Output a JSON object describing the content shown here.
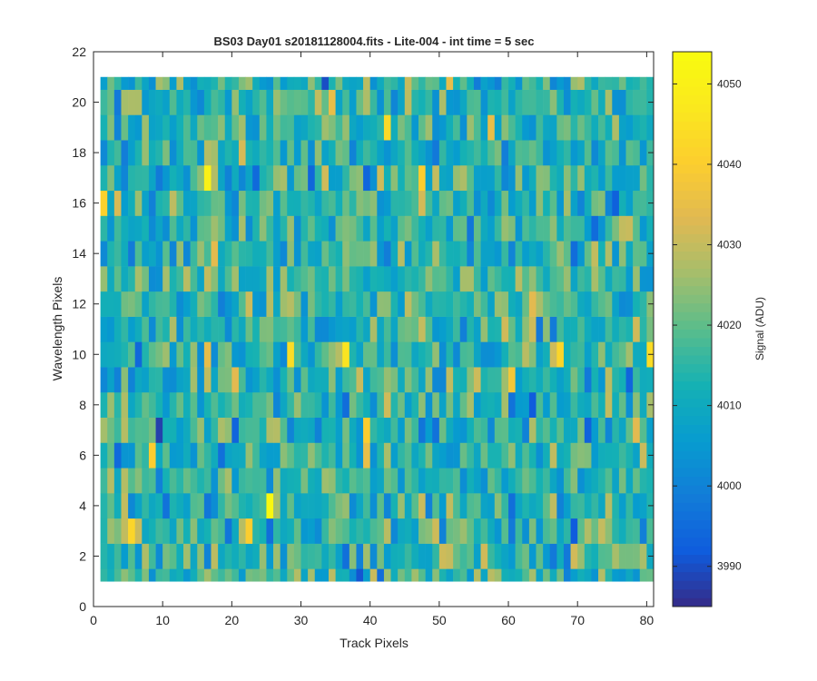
{
  "chart_data": {
    "type": "heatmap",
    "title": "BS03 Day01  s20181128004.fits - Lite-004 - int time = 5 sec",
    "xlabel": "Track Pixels",
    "ylabel": "Wavelength Pixels",
    "colorbar_label": "Signal (ADU)",
    "xlim": [
      0,
      81
    ],
    "ylim": [
      0,
      22
    ],
    "x_ticks": [
      0,
      10,
      20,
      30,
      40,
      50,
      60,
      70,
      80
    ],
    "y_ticks": [
      0,
      2,
      4,
      6,
      8,
      10,
      12,
      14,
      16,
      18,
      20,
      22
    ],
    "clim": [
      3985,
      4054
    ],
    "colorbar_ticks": [
      3990,
      4000,
      4010,
      4020,
      4030,
      4040,
      4050
    ],
    "colormap": "parula",
    "grid": false,
    "n_cols": 80,
    "n_rows": 20,
    "signal_mean": 4014,
    "signal_spread": 8,
    "highlights": [
      {
        "col": 25,
        "row": 4,
        "value": 4053
      },
      {
        "col": 16,
        "row": 17,
        "value": 4050
      },
      {
        "col": 22,
        "row": 3,
        "value": 4040
      },
      {
        "col": 28,
        "row": 10,
        "value": 4044
      },
      {
        "col": 36,
        "row": 10,
        "value": 4046
      },
      {
        "col": 42,
        "row": 19,
        "value": 4043
      },
      {
        "col": 47,
        "row": 17,
        "value": 4040
      },
      {
        "col": 67,
        "row": 10,
        "value": 4042
      },
      {
        "col": 80,
        "row": 10,
        "value": 4044
      },
      {
        "col": 1,
        "row": 16,
        "value": 4041
      },
      {
        "col": 34,
        "row": 20,
        "value": 4035
      },
      {
        "col": 39,
        "row": 7,
        "value": 4040
      },
      {
        "col": 60,
        "row": 9,
        "value": 4038
      },
      {
        "col": 9,
        "row": 7,
        "value": 3988
      },
      {
        "col": 33,
        "row": 21,
        "value": 3990
      },
      {
        "col": 69,
        "row": 3,
        "value": 3992
      },
      {
        "col": 75,
        "row": 16,
        "value": 3993
      },
      {
        "col": 5,
        "row": 3,
        "value": 4042
      },
      {
        "col": 8,
        "row": 6,
        "value": 4040
      },
      {
        "col": 57,
        "row": 19,
        "value": 4035
      },
      {
        "col": 63,
        "row": 8,
        "value": 3992
      },
      {
        "col": 38,
        "row": 1,
        "value": 3991
      }
    ]
  }
}
